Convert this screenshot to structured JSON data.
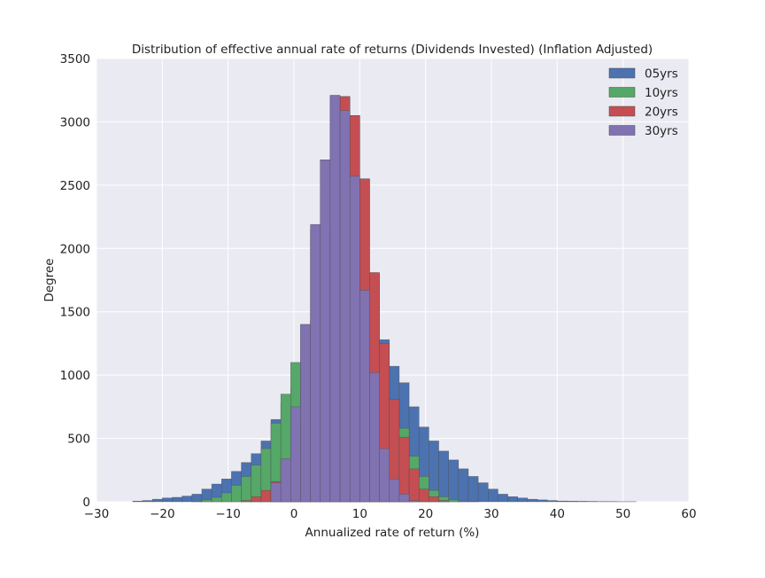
{
  "chart_data": {
    "type": "bar",
    "title": "Distribution of effective annual rate of returns (Dividends Invested) (Inflation Adjusted)",
    "xlabel": "Annualized rate of return (%)",
    "ylabel": "Degree",
    "xlim": [
      -30,
      60
    ],
    "ylim": [
      0,
      3500
    ],
    "xticks": [
      "−30",
      "−20",
      "−10",
      "0",
      "10",
      "20",
      "30",
      "40",
      "50",
      "60"
    ],
    "yticks": [
      "0",
      "500",
      "1000",
      "1500",
      "2000",
      "2500",
      "3000",
      "3500"
    ],
    "grid": true,
    "legend": "top-right",
    "bin_width": 1.5,
    "series": [
      {
        "name": "05yrs",
        "color": "#4c72b0",
        "start": -24.5,
        "values": [
          5,
          10,
          20,
          30,
          35,
          45,
          60,
          100,
          140,
          180,
          240,
          310,
          380,
          480,
          650,
          780,
          900,
          1100,
          1400,
          2150,
          2700,
          3200,
          3050,
          2550,
          1800,
          1280,
          1070,
          940,
          750,
          590,
          480,
          400,
          330,
          260,
          200,
          150,
          100,
          60,
          40,
          30,
          20,
          15,
          10,
          6,
          5,
          4,
          3,
          2,
          2,
          1,
          1
        ]
      },
      {
        "name": "10yrs",
        "color": "#55a868",
        "start": -15.5,
        "values": [
          5,
          15,
          35,
          70,
          130,
          200,
          290,
          420,
          620,
          850,
          1100,
          1400,
          2150,
          2700,
          3200,
          3050,
          2550,
          1800,
          1280,
          1070,
          800,
          580,
          360,
          200,
          90,
          40,
          15,
          5,
          2
        ]
      },
      {
        "name": "20yrs",
        "color": "#c44e52",
        "start": -8,
        "values": [
          10,
          40,
          90,
          160,
          320,
          600,
          1030,
          1430,
          2150,
          2700,
          3200,
          3050,
          2550,
          1810,
          1250,
          810,
          510,
          260,
          100,
          40,
          10
        ]
      },
      {
        "name": "30yrs",
        "color": "#8172b2",
        "start": -3.5,
        "values": [
          150,
          340,
          750,
          1400,
          2190,
          2700,
          3210,
          3090,
          2570,
          1670,
          1020,
          420,
          180,
          60,
          10
        ]
      }
    ]
  }
}
